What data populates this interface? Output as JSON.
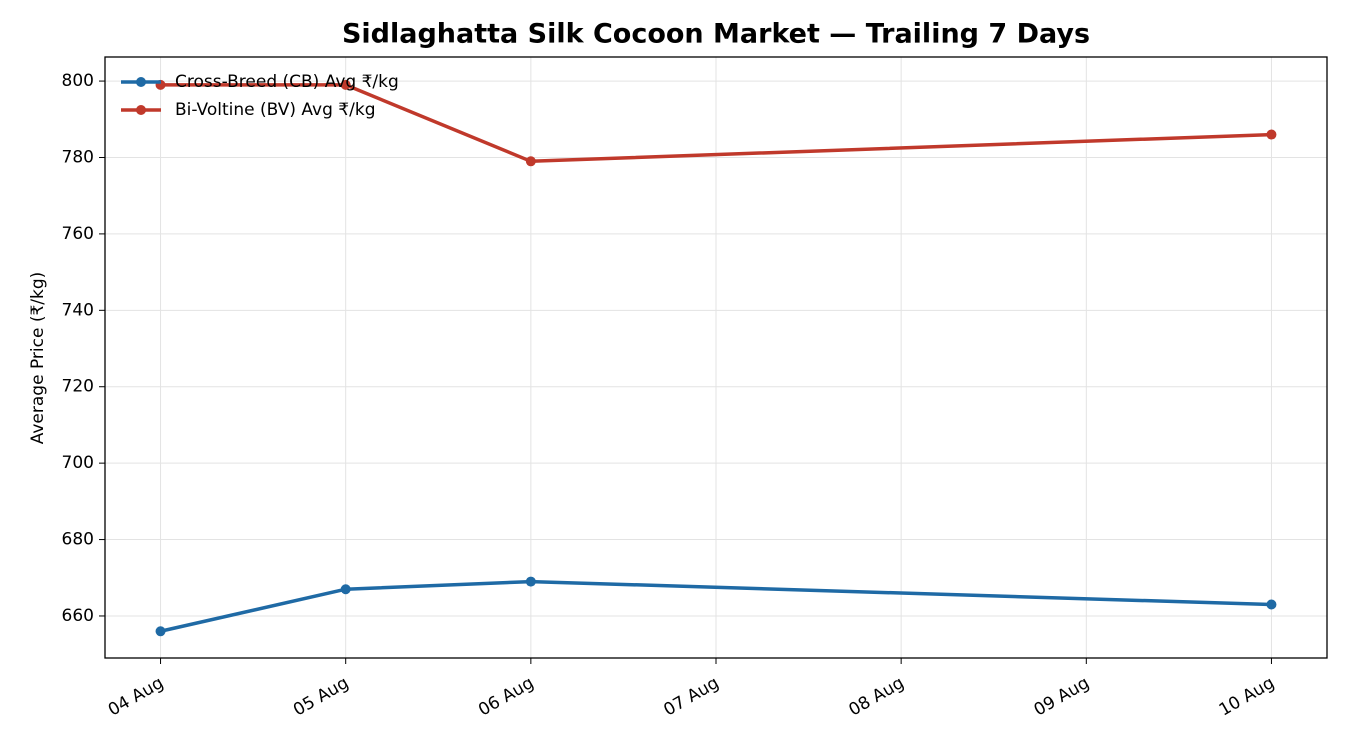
{
  "chart_data": {
    "type": "line",
    "title": "Sidlaghatta Silk Cocoon Market — Trailing 7 Days",
    "y_label": "Average Price (₹/kg)",
    "x": [
      4,
      5,
      6,
      10
    ],
    "series": [
      {
        "name": "Cross-Breed (CB) Avg ₹/kg",
        "color": "#1f6aa5",
        "values": [
          656,
          667,
          669,
          663
        ]
      },
      {
        "name": "Bi-Voltine (BV) Avg ₹/kg",
        "color": "#c0392b",
        "values": [
          799,
          799,
          779,
          786
        ]
      }
    ],
    "xlim": [
      3.7,
      10.3
    ],
    "xticks": [
      {
        "value": 4,
        "label": "04 Aug"
      },
      {
        "value": 5,
        "label": "05 Aug"
      },
      {
        "value": 6,
        "label": "06 Aug"
      },
      {
        "value": 7,
        "label": "07 Aug"
      },
      {
        "value": 8,
        "label": "08 Aug"
      },
      {
        "value": 9,
        "label": "09 Aug"
      },
      {
        "value": 10,
        "label": "10 Aug"
      }
    ],
    "ylim": [
      649,
      806.3
    ],
    "yticks": [
      660,
      680,
      700,
      720,
      740,
      760,
      780,
      800
    ],
    "grid": true,
    "legend": "upper-left"
  }
}
